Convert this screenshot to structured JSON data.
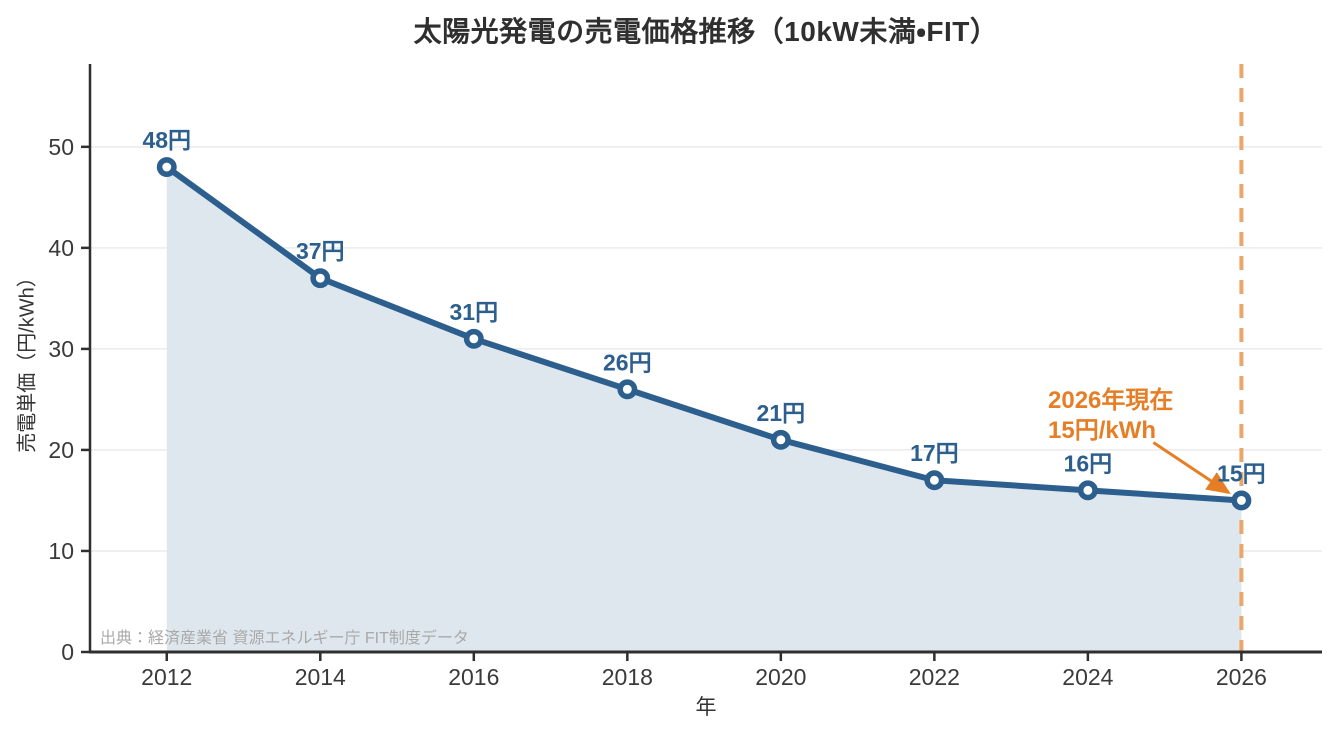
{
  "chart_data": {
    "type": "line",
    "title": "太陽光発電の売電価格推移（10kW未満・FIT）",
    "xlabel": "年",
    "ylabel": "売電単価（円/kWh）",
    "x": [
      2012,
      2014,
      2016,
      2018,
      2020,
      2022,
      2024,
      2026
    ],
    "values": [
      48,
      37,
      31,
      26,
      21,
      17,
      16,
      15
    ],
    "point_labels": [
      "48円",
      "37円",
      "31円",
      "26円",
      "21円",
      "17円",
      "16円",
      "15円"
    ],
    "xticks": [
      2012,
      2014,
      2016,
      2018,
      2020,
      2022,
      2024,
      2026
    ],
    "yticks": [
      0,
      10,
      20,
      30,
      40,
      50
    ],
    "xlim": [
      2011,
      2027.05
    ],
    "ylim": [
      0,
      58
    ],
    "grid": "horizontal",
    "legend": "none",
    "area_fill": true,
    "vline_year": 2026,
    "annotation": {
      "line1": "2026年現在",
      "line2": "15円/kWh",
      "target_year": 2026,
      "target_value": 15
    },
    "source": "出典：経済産業省 資源エネルギー庁 FIT制度データ",
    "colors": {
      "line": "#2d5f8e",
      "marker_fill": "#ffffff",
      "area": "#dfe7ee",
      "value_label": "#2d5f8e",
      "annotation": "#e67e26",
      "vline": "#e9a76a",
      "axis": "#2f2f2f",
      "tick_label": "#3a3a3a",
      "grid": "#ebebeb",
      "title": "#2f2f2f",
      "source": "#a9a9a9"
    }
  }
}
